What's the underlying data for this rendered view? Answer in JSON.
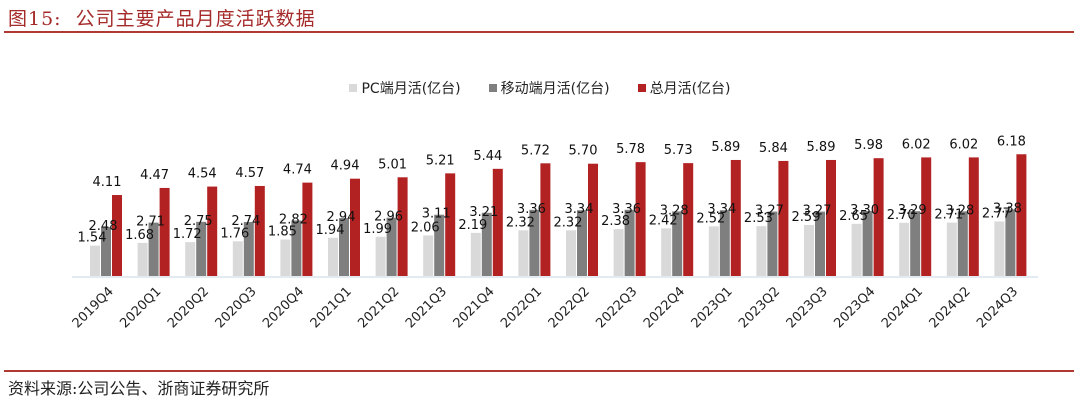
{
  "figure": {
    "label": "图15:",
    "title": "公司主要产品月度活跃数据",
    "source": "资料来源:公司公告、浙商证券研究所"
  },
  "colors": {
    "accent": "#b03a32",
    "pc": "#d9d9d9",
    "mobile": "#7f7f7f",
    "total": "#b22222"
  },
  "chart_data": {
    "type": "bar",
    "title": "公司主要产品月度活跃数据",
    "xlabel": "",
    "ylabel": "",
    "ylim": [
      0,
      7
    ],
    "grid": false,
    "legend_position": "top-center",
    "categories": [
      "2019Q4",
      "2020Q1",
      "2020Q2",
      "2020Q3",
      "2020Q4",
      "2021Q1",
      "2021Q2",
      "2021Q3",
      "2021Q4",
      "2022Q1",
      "2022Q2",
      "2022Q3",
      "2022Q4",
      "2023Q1",
      "2023Q2",
      "2023Q3",
      "2023Q4",
      "2024Q1",
      "2024Q2",
      "2024Q3"
    ],
    "series": [
      {
        "name": "PC端月活(亿台)",
        "legend_label": "PC端月活(亿台)",
        "color": "#d9d9d9",
        "values": [
          1.54,
          1.68,
          1.72,
          1.76,
          1.85,
          1.94,
          1.99,
          2.06,
          2.19,
          2.32,
          2.32,
          2.38,
          2.42,
          2.52,
          2.53,
          2.59,
          2.65,
          2.7,
          2.71,
          2.77
        ]
      },
      {
        "name": "移动端月活(亿台)",
        "legend_label": "移动端月活(亿台)",
        "color": "#7f7f7f",
        "values": [
          2.48,
          2.71,
          2.75,
          2.74,
          2.82,
          2.94,
          2.96,
          3.11,
          3.21,
          3.36,
          3.34,
          3.36,
          3.28,
          3.34,
          3.27,
          3.27,
          3.3,
          3.29,
          3.28,
          3.38
        ]
      },
      {
        "name": "总月活(亿台)",
        "legend_label": "总月活(亿台)",
        "color": "#b22222",
        "values": [
          4.11,
          4.47,
          4.54,
          4.57,
          4.74,
          4.94,
          5.01,
          5.21,
          5.44,
          5.72,
          5.7,
          5.78,
          5.73,
          5.89,
          5.84,
          5.89,
          5.98,
          6.02,
          6.02,
          6.18
        ]
      }
    ]
  }
}
